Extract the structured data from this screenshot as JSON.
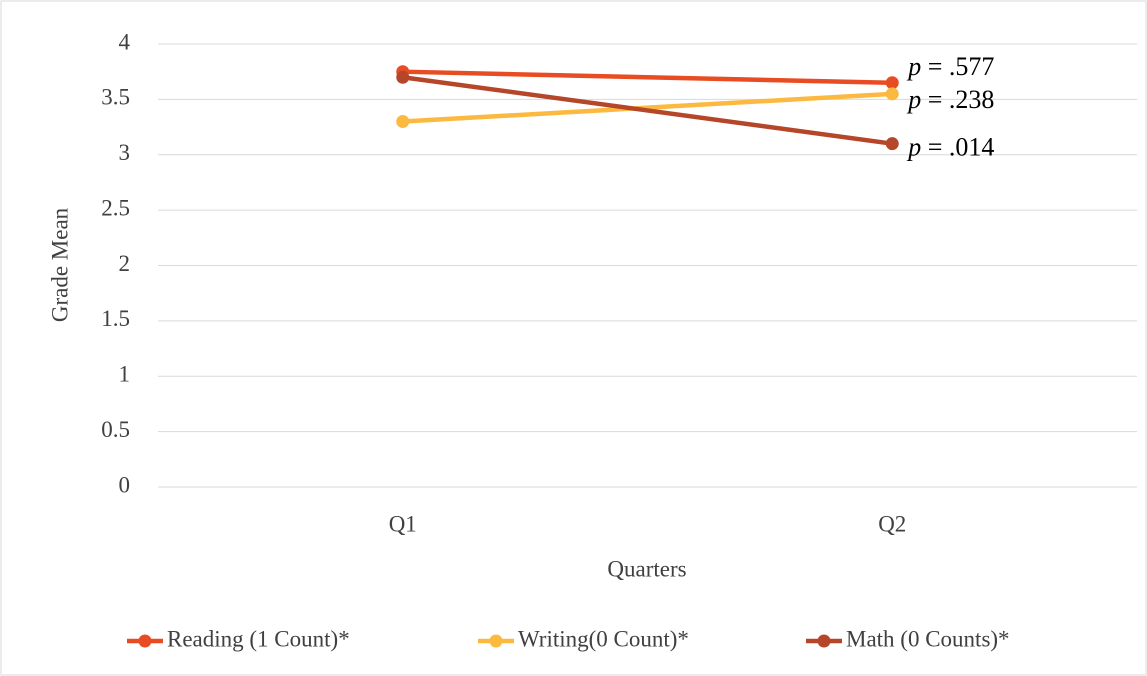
{
  "chart_data": {
    "type": "line",
    "categories": [
      "Q1",
      "Q2"
    ],
    "series": [
      {
        "name": "Reading (1 Count)*",
        "color": "#e84c22",
        "values": [
          3.75,
          3.65
        ]
      },
      {
        "name": "Writing(0 Count)*",
        "color": "#fbb93f",
        "values": [
          3.3,
          3.55
        ]
      },
      {
        "name": "Math (0 Counts)*",
        "color": "#b5462a",
        "values": [
          3.7,
          3.1
        ]
      }
    ],
    "annotations": [
      "p = .577",
      "p = .238",
      "p = .014"
    ],
    "ylabel": "Grade Mean",
    "xlabel": "Quarters",
    "ylim": [
      0,
      4
    ],
    "yticks": [
      0,
      0.5,
      1,
      1.5,
      2,
      2.5,
      3,
      3.5,
      4
    ],
    "grid": true,
    "legend": "bottom"
  }
}
